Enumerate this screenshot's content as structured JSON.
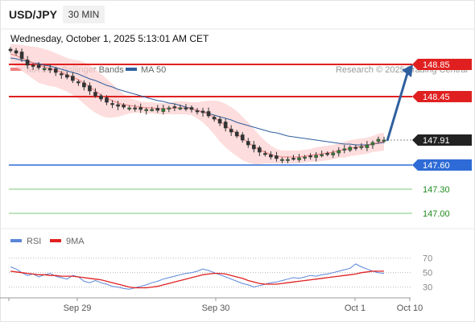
{
  "header": {
    "symbol": "USD/JPY",
    "timeframe": "30 MIN",
    "datetime": "Wednesday, October 1, 2025 5:13:01 AM CET"
  },
  "legend": {
    "ma20_label": "MA 20 + Bollinger Bands",
    "ma50_label": "MA 50",
    "copyright": "Research © 2025 Trading Central",
    "ma20_color": "#f08080",
    "ma50_color": "#2f5f9e",
    "band_color": "#fdd5d5"
  },
  "chart_data": [
    {
      "type": "candlestick",
      "x_tick_labels": [
        "Sep 29",
        "Sep 30",
        "Oct 1",
        "Oct 10"
      ],
      "ylim": [
        146.8,
        149.2
      ],
      "current_price": 147.91,
      "levels": [
        {
          "value": 148.85,
          "label": "148.85",
          "color": "#e02020",
          "style": "box"
        },
        {
          "value": 148.45,
          "label": "148.45",
          "color": "#e02020",
          "style": "box"
        },
        {
          "value": 147.91,
          "label": "147.91",
          "color": "#222222",
          "style": "box"
        },
        {
          "value": 147.6,
          "label": "147.60",
          "color": "#2e6bd6",
          "style": "box"
        },
        {
          "value": 147.3,
          "label": "147.30",
          "color": "#1f8a1f",
          "style": "text"
        },
        {
          "value": 147.0,
          "label": "147.00",
          "color": "#1f8a1f",
          "style": "text"
        }
      ],
      "close": [
        149.02,
        148.99,
        148.92,
        148.84,
        148.83,
        148.81,
        148.8,
        148.78,
        148.75,
        148.72,
        148.69,
        148.65,
        148.62,
        148.57,
        148.52,
        148.46,
        148.42,
        148.38,
        148.35,
        148.33,
        148.32,
        148.31,
        148.3,
        148.29,
        148.29,
        148.29,
        148.28,
        148.3,
        148.31,
        148.32,
        148.31,
        148.3,
        148.29,
        148.27,
        148.25,
        148.21,
        148.17,
        148.12,
        148.06,
        148.01,
        147.96,
        147.91,
        147.85,
        147.8,
        147.76,
        147.73,
        147.7,
        147.68,
        147.67,
        147.67,
        147.68,
        147.69,
        147.7,
        147.71,
        147.72,
        147.73,
        147.74,
        147.75,
        147.78,
        147.8,
        147.82,
        147.81,
        147.83,
        147.85,
        147.88,
        147.92,
        147.91
      ],
      "ma20": [
        148.98,
        148.96,
        148.93,
        148.9,
        148.87,
        148.84,
        148.82,
        148.8,
        148.78,
        148.75,
        148.72,
        148.69,
        148.66,
        148.62,
        148.57,
        148.52,
        148.47,
        148.43,
        148.4,
        148.37,
        148.35,
        148.34,
        148.33,
        148.32,
        148.31,
        148.31,
        148.3,
        148.3,
        148.3,
        148.31,
        148.31,
        148.31,
        148.3,
        148.28,
        148.26,
        148.23,
        148.19,
        148.14,
        148.09,
        148.04,
        147.99,
        147.93,
        147.88,
        147.83,
        147.79,
        147.76,
        147.73,
        147.71,
        147.7,
        147.7,
        147.7,
        147.7,
        147.71,
        147.72,
        147.73,
        147.74,
        147.75,
        147.76,
        147.78,
        147.79,
        147.81,
        147.82,
        147.83,
        147.84,
        147.86,
        147.88,
        147.89
      ],
      "ma50": [
        148.93,
        148.92,
        148.9,
        148.89,
        148.87,
        148.86,
        148.84,
        148.83,
        148.81,
        148.79,
        148.77,
        148.75,
        148.73,
        148.7,
        148.67,
        148.65,
        148.62,
        148.59,
        148.57,
        148.54,
        148.52,
        148.5,
        148.48,
        148.46,
        148.44,
        148.42,
        148.4,
        148.39,
        148.37,
        148.36,
        148.34,
        148.32,
        148.3,
        148.28,
        148.26,
        148.24,
        148.22,
        148.2,
        148.18,
        148.16,
        148.13,
        148.11,
        148.09,
        148.07,
        148.05,
        148.03,
        148.01,
        148.0,
        147.98,
        147.96,
        147.95,
        147.94,
        147.93,
        147.92,
        147.91,
        147.9,
        147.89,
        147.88,
        147.87,
        147.86,
        147.86,
        147.85,
        147.85,
        147.85,
        147.86,
        147.87,
        147.88
      ],
      "band_width": [
        0.12,
        0.14,
        0.16,
        0.18,
        0.2,
        0.22,
        0.22,
        0.22,
        0.21,
        0.21,
        0.21,
        0.22,
        0.24,
        0.26,
        0.27,
        0.27,
        0.26,
        0.24,
        0.21,
        0.17,
        0.13,
        0.1,
        0.08,
        0.07,
        0.07,
        0.07,
        0.07,
        0.07,
        0.07,
        0.08,
        0.08,
        0.08,
        0.08,
        0.1,
        0.13,
        0.17,
        0.21,
        0.25,
        0.27,
        0.28,
        0.28,
        0.27,
        0.25,
        0.22,
        0.18,
        0.14,
        0.11,
        0.09,
        0.08,
        0.08,
        0.08,
        0.08,
        0.08,
        0.08,
        0.09,
        0.09,
        0.09,
        0.09,
        0.09,
        0.1,
        0.1,
        0.1,
        0.1,
        0.1,
        0.1,
        0.11,
        0.11
      ],
      "forecast_arrow": {
        "from": 147.91,
        "to": 148.85
      }
    },
    {
      "type": "line",
      "series": [
        {
          "name": "RSI",
          "color": "#5b86d8",
          "values": [
            58,
            55,
            50,
            46,
            48,
            44,
            47,
            49,
            45,
            43,
            41,
            46,
            44,
            38,
            36,
            39,
            36,
            34,
            31,
            30,
            28,
            27,
            29,
            31,
            33,
            36,
            38,
            41,
            43,
            45,
            47,
            49,
            50,
            52,
            55,
            53,
            50,
            47,
            44,
            41,
            38,
            35,
            33,
            30,
            32,
            34,
            36,
            37,
            39,
            41,
            43,
            42,
            44,
            46,
            45,
            47,
            48,
            50,
            52,
            54,
            56,
            62,
            58,
            55,
            52,
            50,
            49
          ]
        },
        {
          "name": "9MA",
          "color": "#e02020",
          "values": [
            52,
            51,
            50,
            49,
            48,
            47,
            47,
            46,
            46,
            45,
            45,
            45,
            44,
            43,
            42,
            41,
            40,
            38,
            36,
            34,
            32,
            30,
            29,
            29,
            29,
            30,
            31,
            33,
            35,
            37,
            39,
            41,
            43,
            45,
            47,
            48,
            49,
            49,
            48,
            46,
            44,
            42,
            39,
            37,
            35,
            34,
            34,
            34,
            35,
            36,
            37,
            38,
            39,
            40,
            41,
            42,
            43,
            44,
            45,
            46,
            47,
            48,
            50,
            51,
            52,
            52,
            52
          ]
        }
      ],
      "y_tick_labels": [
        "70",
        "50",
        "30"
      ],
      "y_ticks": [
        70,
        50,
        30
      ],
      "ylim": [
        15,
        82
      ]
    }
  ]
}
